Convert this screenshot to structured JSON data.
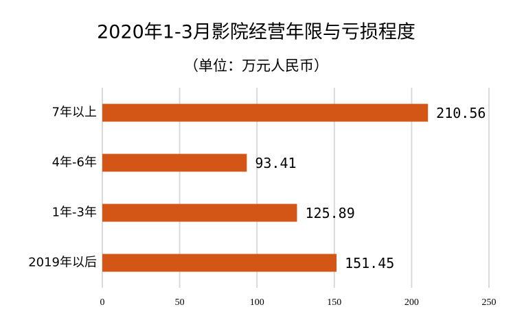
{
  "chart_data": {
    "type": "bar",
    "orientation": "horizontal",
    "title": "2020年1-3月影院经营年限与亏损程度",
    "subtitle": "（单位：万元人民币）",
    "categories": [
      "7年以上",
      "4年-6年",
      "1年-3年",
      "2019年以后"
    ],
    "values": [
      210.56,
      93.41,
      125.89,
      151.45
    ],
    "color": "#d35617",
    "xlim": [
      0,
      250
    ],
    "xticks": [
      0,
      50,
      100,
      150,
      200,
      250
    ],
    "grid": true
  }
}
